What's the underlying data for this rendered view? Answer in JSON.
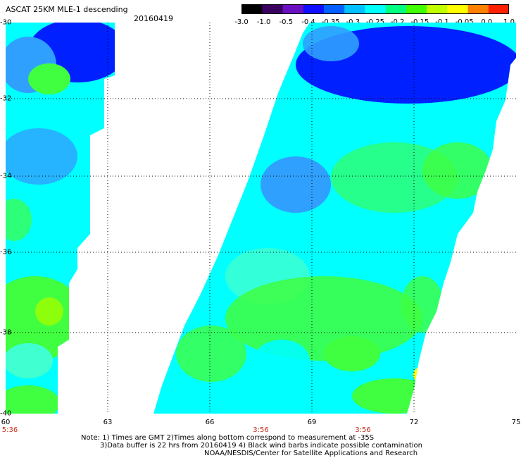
{
  "header": {
    "title": "ASCAT 25KM MLE-1 descending",
    "date": "20160419"
  },
  "colorbar": {
    "labels": [
      "-3.0",
      "-1.0",
      "-0.5",
      "-0.4",
      "-0.35",
      "-0.3",
      "-0.25",
      "-0.2",
      "-0.15",
      "-0.1",
      "-0.05",
      "0.0",
      "1.0"
    ],
    "colors": [
      "#000000",
      "#3a0060",
      "#6a10c0",
      "#1010ff",
      "#0060ff",
      "#00c0ff",
      "#00ffff",
      "#00ff80",
      "#40ff00",
      "#c0ff00",
      "#ffff00",
      "#ff8000",
      "#ff2000"
    ]
  },
  "map": {
    "lat_labels": [
      "-30",
      "-32",
      "-34",
      "-36",
      "-38",
      "-40"
    ],
    "lon_labels": [
      "60",
      "63",
      "66",
      "69",
      "72",
      "75"
    ],
    "time_labels": [
      {
        "text": "5:36",
        "lon": 60
      },
      {
        "text": "3:56",
        "lon": 67.5
      },
      {
        "text": "3:56",
        "lon": 70.5
      }
    ],
    "colors": {
      "strong_blue": "#0020ff",
      "blue": "#2050ff",
      "light_blue": "#30a0ff",
      "cyan": "#00ffff",
      "aqua": "#40ffd0",
      "green": "#40ff40",
      "yellow_green": "#a0ff00",
      "yellow": "#ffff00",
      "gridline": "#000000"
    }
  },
  "notes": {
    "line1": "Note: 1) Times are GMT 2)Times along bottom correspond to measurement at -35S",
    "line2": "3)Data buffer is 22 hrs from 20160419 4) Black wind barbs indicate possible contamination",
    "line3": "NOAA/NESDIS/Center for Satellite Applications and Research"
  }
}
